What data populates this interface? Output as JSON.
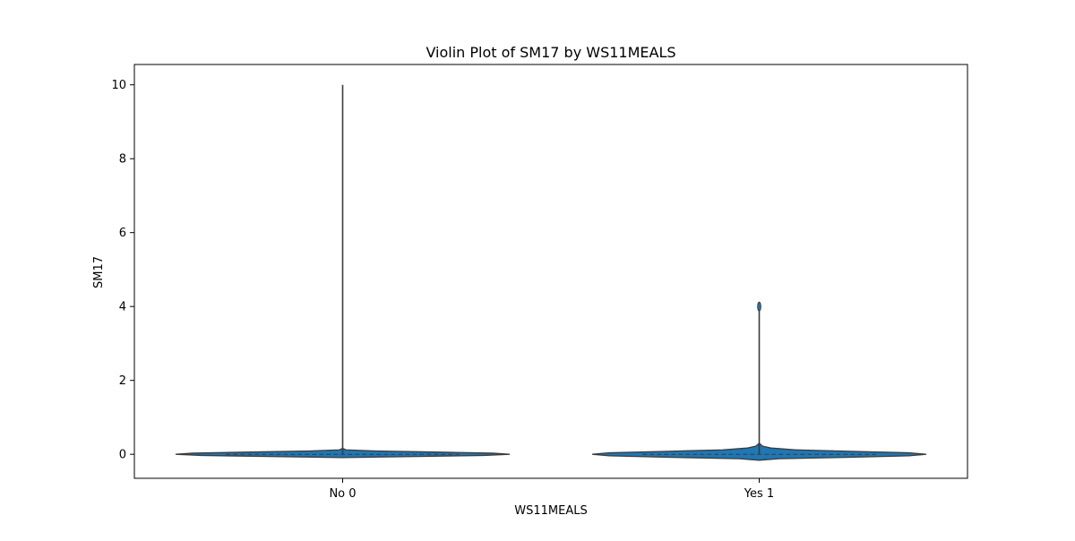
{
  "chart_data": {
    "type": "violin",
    "title": "Violin Plot of SM17 by WS11MEALS",
    "xlabel": "WS11MEALS",
    "ylabel": "SM17",
    "categories": [
      "No 0",
      "Yes 1"
    ],
    "ylim": [
      -0.65,
      10.55
    ],
    "yticks": [
      0,
      2,
      4,
      6,
      8,
      10
    ],
    "grid": false,
    "violin_color": "#1f77b4",
    "edge_color": "#3b3b3b",
    "violins": [
      {
        "category": "No 0",
        "min": 0,
        "max": 10,
        "median": 0,
        "q1": 0,
        "q3": 0,
        "density_profile": [
          {
            "y": -0.09,
            "w": 0.0
          },
          {
            "y": -0.06,
            "w": 0.45
          },
          {
            "y": -0.03,
            "w": 0.85
          },
          {
            "y": 0.0,
            "w": 1.0
          },
          {
            "y": 0.03,
            "w": 0.9
          },
          {
            "y": 0.06,
            "w": 0.55
          },
          {
            "y": 0.09,
            "w": 0.2
          },
          {
            "y": 0.12,
            "w": 0.02
          },
          {
            "y": 0.16,
            "w": 0.0
          }
        ]
      },
      {
        "category": "Yes 1",
        "min": 0,
        "max": 4,
        "median": 0,
        "q1": 0,
        "q3": 0,
        "density_profile": [
          {
            "y": -0.16,
            "w": 0.0
          },
          {
            "y": -0.12,
            "w": 0.12
          },
          {
            "y": -0.08,
            "w": 0.55
          },
          {
            "y": -0.04,
            "w": 0.9
          },
          {
            "y": 0.0,
            "w": 1.0
          },
          {
            "y": 0.04,
            "w": 0.9
          },
          {
            "y": 0.08,
            "w": 0.55
          },
          {
            "y": 0.12,
            "w": 0.22
          },
          {
            "y": 0.17,
            "w": 0.07
          },
          {
            "y": 0.22,
            "w": 0.02
          },
          {
            "y": 0.3,
            "w": 0.0
          }
        ]
      }
    ]
  }
}
